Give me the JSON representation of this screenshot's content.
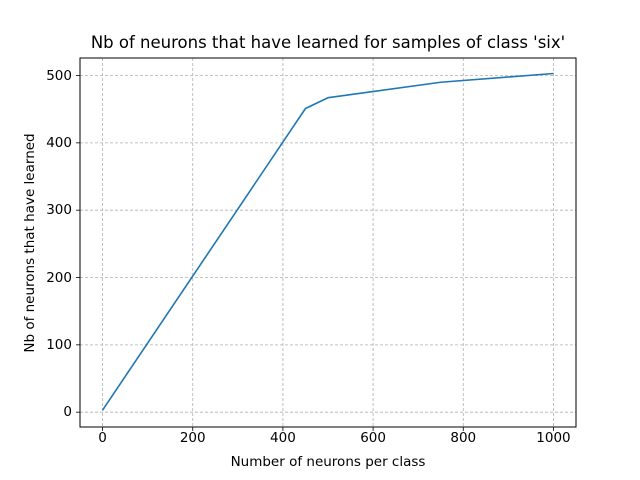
{
  "chart_data": {
    "type": "line",
    "title": "Nb of neurons that have learned for samples of class 'six'",
    "xlabel": "Number of neurons per class",
    "ylabel": "Nb of neurons that have learned",
    "xlim": [
      -50,
      1050
    ],
    "ylim": [
      -22,
      526
    ],
    "xticks": [
      0,
      200,
      400,
      600,
      800,
      1000
    ],
    "yticks": [
      0,
      100,
      200,
      300,
      400,
      500
    ],
    "grid": true,
    "grid_style": "dashed",
    "legend": null,
    "series": [
      {
        "name": "six",
        "color": "#1f77b4",
        "x": [
          0,
          450,
          500,
          750,
          1000
        ],
        "y": [
          3,
          451,
          467,
          490,
          503
        ]
      }
    ]
  },
  "text": {
    "title": "Nb of neurons that have learned for samples of class 'six'",
    "xlabel": "Number of neurons per class",
    "ylabel": "Nb of neurons that have learned",
    "xtick_labels": [
      "0",
      "200",
      "400",
      "600",
      "800",
      "1000"
    ],
    "ytick_labels": [
      "0",
      "100",
      "200",
      "300",
      "400",
      "500"
    ]
  }
}
